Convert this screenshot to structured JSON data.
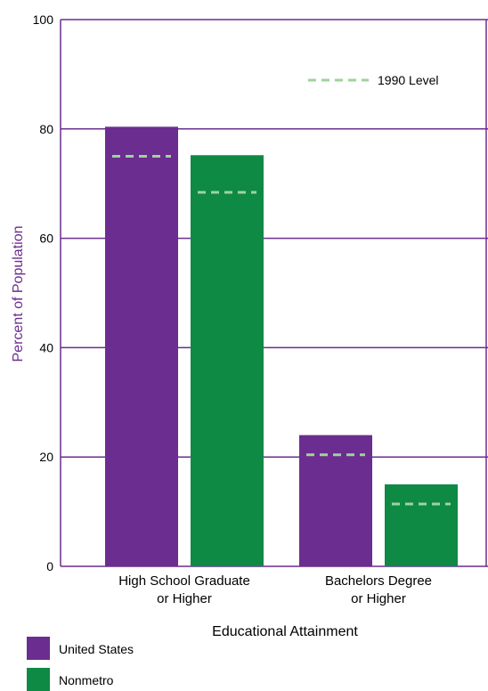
{
  "chart_data": {
    "type": "bar",
    "xlabel": "Educational Attainment",
    "ylabel": "Percent of Population",
    "ylim": [
      0,
      100
    ],
    "yticks": [
      "0",
      "20",
      "40",
      "60",
      "80",
      "100"
    ],
    "categories": [
      [
        "High School Graduate",
        "or Higher"
      ],
      [
        "Bachelors Degree",
        "or Higher"
      ]
    ],
    "series": [
      {
        "name": "United States",
        "color": "#6b2d8f",
        "values": [
          80.4,
          24.0
        ],
        "level_1990": [
          75.0,
          20.4
        ]
      },
      {
        "name": "Nonmetro",
        "color": "#0e8a45",
        "values": [
          75.2,
          15.0
        ],
        "level_1990": [
          68.4,
          11.4
        ]
      }
    ],
    "reference_label": "1990 Level",
    "reference_color": "#9fd39c",
    "grid_color": "#6b2d8f",
    "grid": true,
    "legend": "bottom-left"
  }
}
